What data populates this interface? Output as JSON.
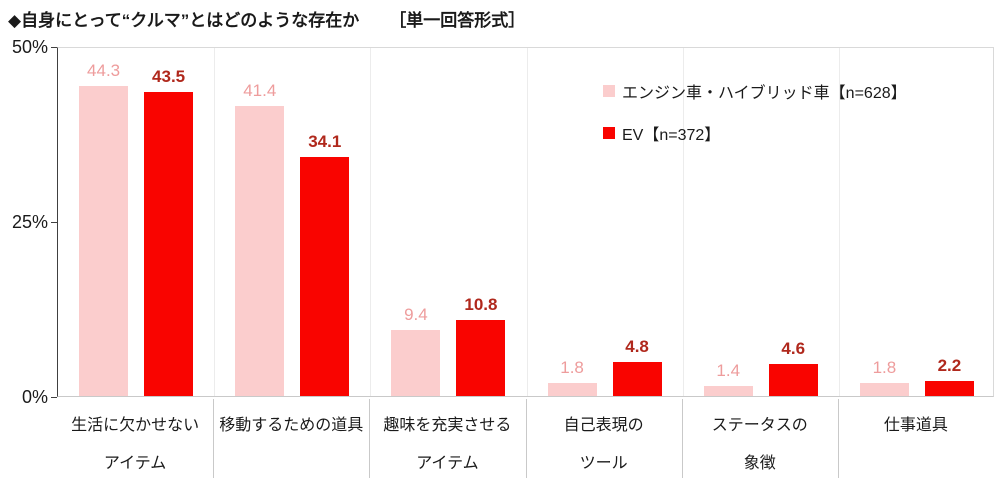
{
  "colors": {
    "engine_bar": "#FBCDCD",
    "ev_bar": "#F90400",
    "engine_label": "#EE9C9C",
    "ev_label": "#B0281C",
    "axis_line": "#404040",
    "plot_border": "#D9D9D9",
    "category_separator_plot": "#ECECEC",
    "category_separator_labels": "#C9C9C9",
    "text": "#1A1A1A"
  },
  "chart_data": {
    "type": "bar",
    "title": "◆自身にとって“クルマ”とはどのような存在か",
    "format_label": "［単一回答形式］",
    "categories": [
      [
        "生活に欠かせない",
        "アイテム"
      ],
      [
        "移動するための道具",
        ""
      ],
      [
        "趣味を充実させる",
        "アイテム"
      ],
      [
        "自己表現の",
        "ツール"
      ],
      [
        "ステータスの",
        "象徴"
      ],
      [
        "仕事道具",
        ""
      ]
    ],
    "series": [
      {
        "name": "エンジン車・ハイブリッド車【n=628】",
        "key": "engine",
        "values": [
          44.3,
          41.4,
          9.4,
          1.8,
          1.4,
          1.8
        ]
      },
      {
        "name": "EV【n=372】",
        "key": "ev",
        "values": [
          43.5,
          34.1,
          10.8,
          4.8,
          4.6,
          2.2
        ]
      }
    ],
    "y_axis": {
      "min": 0,
      "max": 50,
      "unit": "%",
      "tick_labels": [
        "50%",
        "25%",
        "0%"
      ]
    },
    "legend_position": "inside-top-right",
    "grid": "vertical-category-separators-only"
  }
}
